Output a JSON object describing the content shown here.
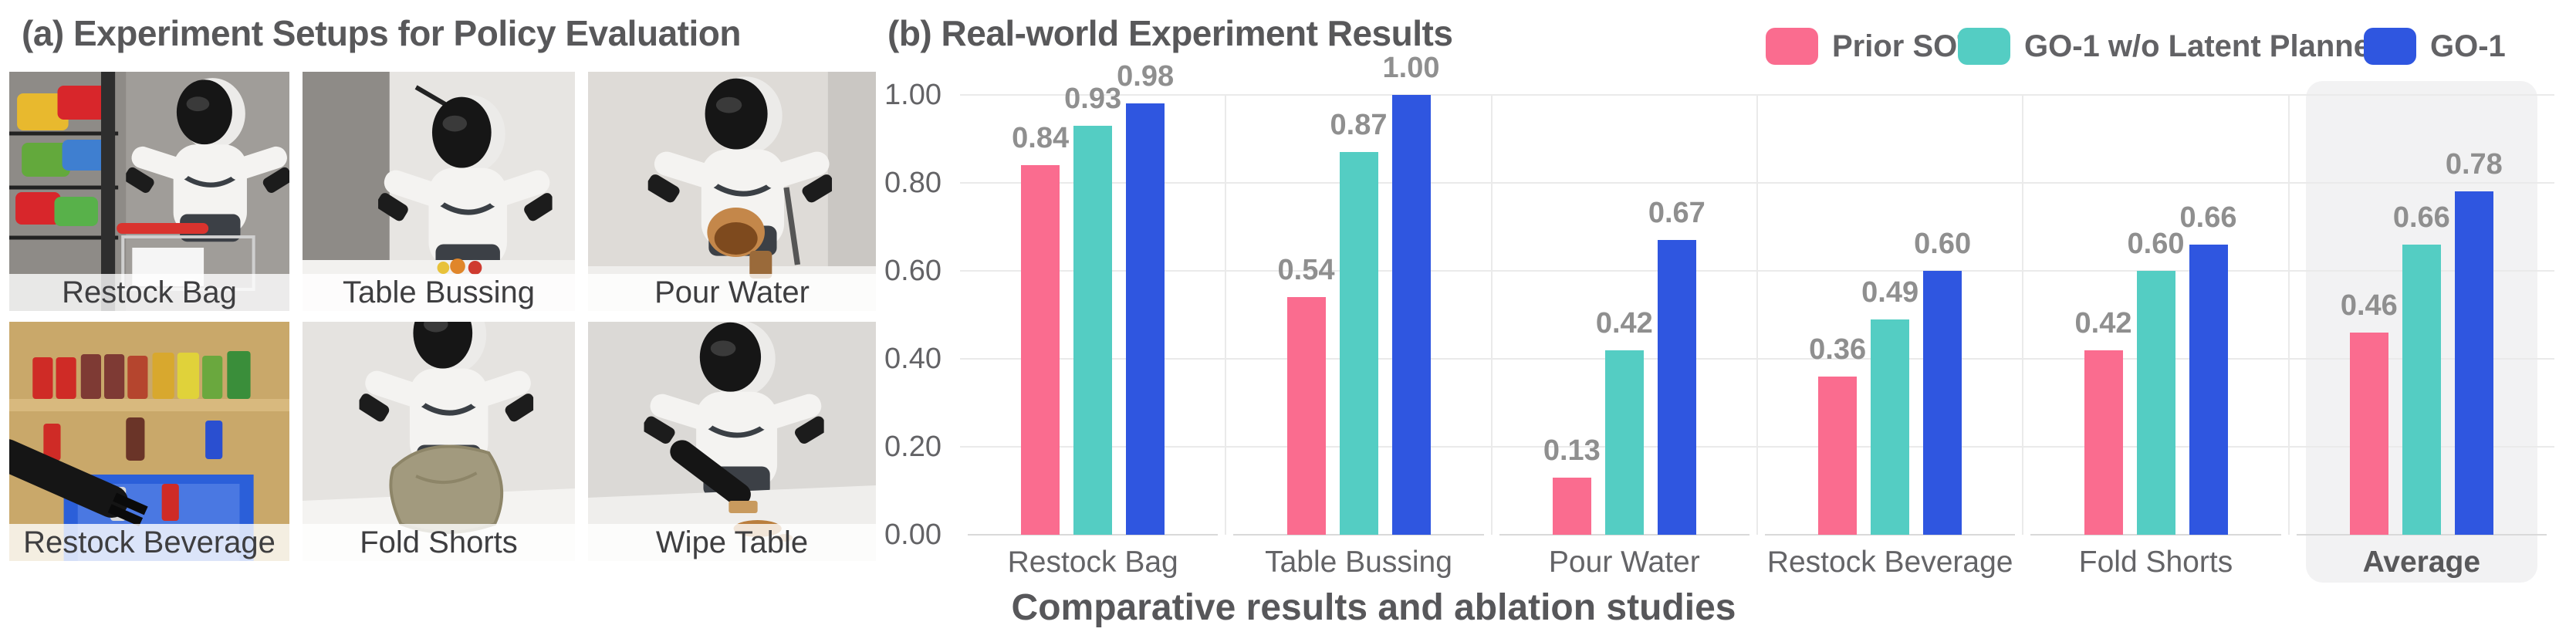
{
  "panel_a": {
    "title": "(a) Experiment Setups for Policy Evaluation",
    "tiles": [
      {
        "label": "Restock Bag"
      },
      {
        "label": "Table Bussing"
      },
      {
        "label": "Pour Water"
      },
      {
        "label": "Restock Beverage"
      },
      {
        "label": "Fold Shorts"
      },
      {
        "label": "Wipe Table"
      }
    ]
  },
  "panel_b": {
    "title": "(b) Real-world Experiment Results",
    "caption": "Comparative results and ablation studies"
  },
  "chart_data": {
    "type": "bar",
    "title": "(b) Real-world Experiment Results",
    "categories": [
      "Restock Bag",
      "Table Bussing",
      "Pour Water",
      "Restock Beverage",
      "Fold Shorts",
      "Average"
    ],
    "series": [
      {
        "name": "Prior SOTA",
        "color": "#FA6C8F",
        "values": [
          0.84,
          0.54,
          0.13,
          0.36,
          0.42,
          0.46
        ]
      },
      {
        "name": "GO-1 w/o Latent Planner",
        "color": "#54CDC3",
        "values": [
          0.93,
          0.87,
          0.42,
          0.49,
          0.6,
          0.66
        ]
      },
      {
        "name": "GO-1",
        "color": "#2F56E0",
        "values": [
          0.98,
          1.0,
          0.67,
          0.6,
          0.66,
          0.78
        ]
      }
    ],
    "ylabel": "",
    "xlabel": "",
    "ylim": [
      0.0,
      1.0
    ],
    "yticks": [
      "0.00",
      "0.20",
      "0.40",
      "0.60",
      "0.80",
      "1.00"
    ],
    "grid": true,
    "legend_position": "top-right",
    "value_labels": true,
    "value_label_format": "0.00",
    "highlight_category": "Average",
    "highlight_color": "#F2F2F3"
  }
}
